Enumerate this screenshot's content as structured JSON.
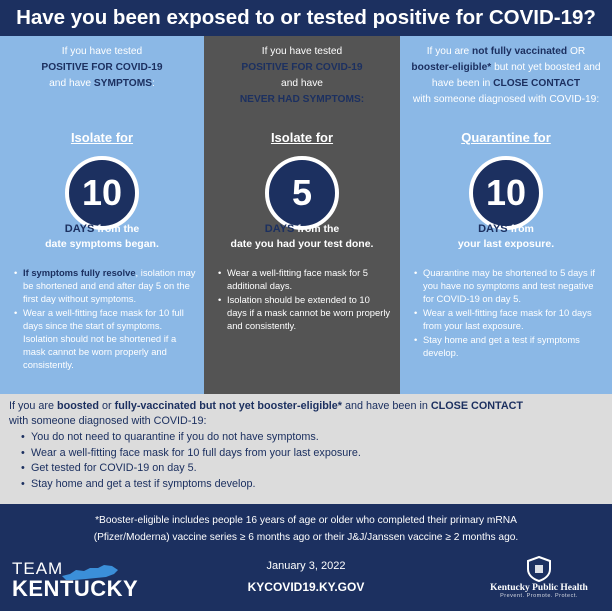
{
  "title": "Have you been exposed to or tested positive for COVID-19?",
  "columns": [
    {
      "intro_pre": "If you have tested",
      "intro_hl1": "POSITIVE FOR COVID-19",
      "intro_mid": "and have",
      "intro_hl2": "SYMPTOMS",
      "intro_post": ":",
      "action": "Isolate for",
      "number": "10",
      "days_word": "DAYS",
      "days_text": "from the",
      "days_line2": "date symptoms began.",
      "bullets": [
        {
          "hl": "If symptoms fully resolve",
          "text": ", isolation may be shortened and end after day 5 on the first day without symptoms."
        },
        {
          "hl": "",
          "text": "Wear a well-fitting face mask for 10 full days since the start of symptoms. Isolation should not be shortened if a mask cannot be worn properly and consistently."
        }
      ]
    },
    {
      "intro_pre": "If you have tested",
      "intro_hl1": "POSITIVE FOR COVID-19",
      "intro_mid": "and have",
      "intro_hl2": "NEVER HAD SYMPTOMS",
      "intro_post": ":",
      "action": "Isolate for",
      "number": "5",
      "days_word": "DAYS",
      "days_text": "from the",
      "days_line2": "date you had your test done.",
      "bullets": [
        {
          "hl": "",
          "text": "Wear a well-fitting face mask for 5 additional days."
        },
        {
          "hl": "",
          "text": "Isolation should be extended to 10 days if a mask cannot be worn properly and consistently."
        }
      ]
    },
    {
      "intro_pre": "If you are",
      "intro_hl1": "not fully vaccinated",
      "intro_or": "OR",
      "intro_hl2": "booster-eligible*",
      "intro_mid": "but not yet boosted and have been in",
      "intro_hl3": "CLOSE CONTACT",
      "intro_post": "with someone diagnosed with COVID-19:",
      "action": "Quarantine for",
      "number": "10",
      "days_word": "DAYS",
      "days_text": "from",
      "days_line2": "your last exposure.",
      "bullets": [
        {
          "hl": "",
          "text": "Quarantine may be shortened to 5 days if you have no symptoms and test negative for COVID-19 on day 5."
        },
        {
          "hl": "",
          "text": "Wear a well-fitting face mask for 10 days from your last exposure."
        },
        {
          "hl": "",
          "text": "Stay home and get a test if symptoms develop."
        }
      ]
    }
  ],
  "boosted": {
    "pre": "If you are",
    "hl1": "boosted",
    "or": "or",
    "hl2": "fully-vaccinated but not yet booster-eligible*",
    "mid": "and have been in",
    "hl3": "CLOSE CONTACT",
    "post": "with someone diagnosed with COVID-19:",
    "bullets": [
      "You do not need to quarantine if you do not have symptoms.",
      "Wear a well-fitting face mask for 10 full days from your last exposure.",
      "Get tested for COVID-19 on day 5.",
      "Stay home and get a test if symptoms develop."
    ]
  },
  "footer": {
    "footnote_line1": "*Booster-eligible includes people 16 years of age or older who completed their primary mRNA",
    "footnote_line2": "(Pfizer/Moderna) vaccine series ≥ 6 months ago or their J&J/Janssen vaccine ≥ 2 months ago.",
    "date": "January 3, 2022",
    "website": "KYCOVID19.KY.GOV",
    "team_logo_top": "TEAM",
    "team_logo_bottom": "KENTUCKY",
    "kph_name": "Kentucky Public Health",
    "kph_tagline": "Prevent. Promote. Protect."
  },
  "colors": {
    "navy": "#1c3060",
    "light_blue": "#8bb8e6",
    "dark_gray": "#545454",
    "light_gray": "#dcdcdc"
  }
}
